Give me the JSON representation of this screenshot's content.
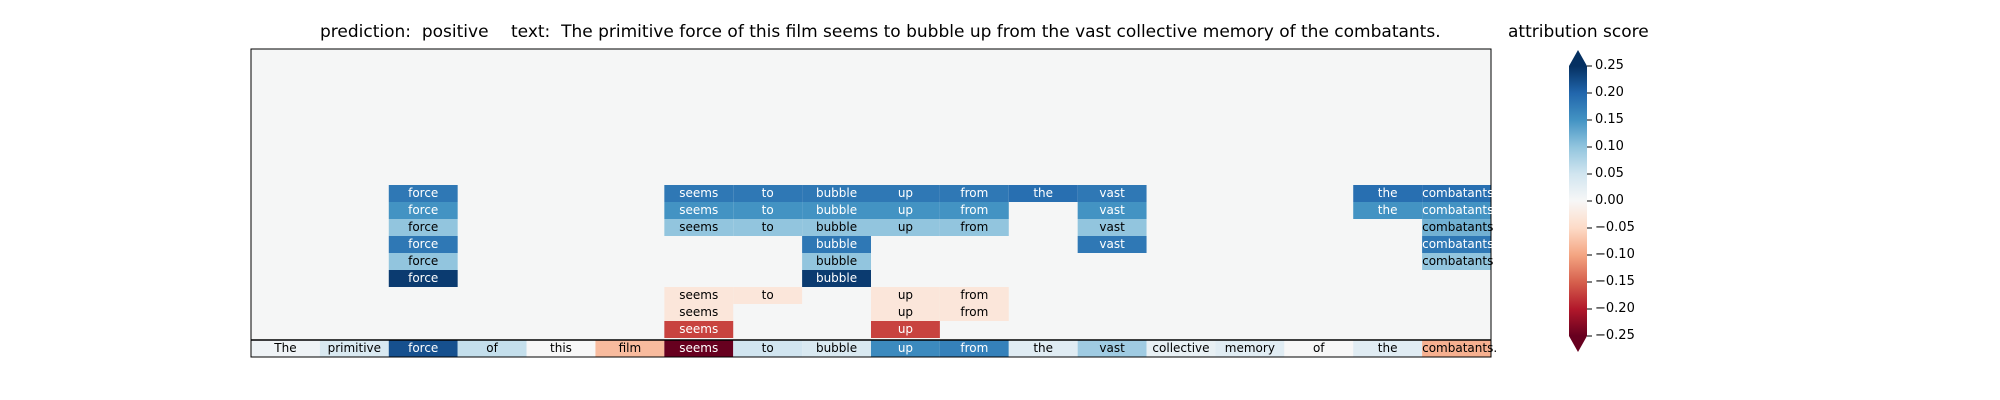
{
  "header": {
    "prediction_label": "prediction:",
    "prediction_value": "positive",
    "text_label": "text:",
    "text_value": "The primitive force of this film seems to bubble up from the vast collective memory of the combatants."
  },
  "colorbar": {
    "title": "attribution score",
    "vmin": -0.25,
    "vmax": 0.25,
    "ticks": [
      0.25,
      0.2,
      0.15,
      0.1,
      0.05,
      0.0,
      -0.05,
      -0.1,
      -0.15,
      -0.2,
      -0.25
    ],
    "tick_labels": [
      "0.25",
      "0.20",
      "0.15",
      "0.10",
      "0.05",
      "0.00",
      "−0.05",
      "−0.10",
      "−0.15",
      "−0.20",
      "−0.25"
    ],
    "colormap": "RdBu",
    "extend": "both"
  },
  "chart_data": {
    "type": "heatmap",
    "tokens": [
      "The",
      "primitive",
      "force",
      "of",
      "this",
      "film",
      "seems",
      "to",
      "bubble",
      "up",
      "from",
      "the",
      "vast",
      "collective",
      "memory",
      "of",
      "the",
      "combatants."
    ],
    "bottom_row_scores": [
      0.01,
      0.04,
      0.22,
      0.06,
      0.0,
      -0.08,
      -0.25,
      0.05,
      0.04,
      0.16,
      0.17,
      0.03,
      0.09,
      0.02,
      0.03,
      0.0,
      0.03,
      -0.09
    ],
    "rows": [
      {
        "cells": [
          {
            "col": 2,
            "word": "force",
            "score": 0.18
          },
          {
            "col": 6,
            "word": "seems",
            "score": 0.18
          },
          {
            "col": 7,
            "word": "to",
            "score": 0.18
          },
          {
            "col": 8,
            "word": "bubble",
            "score": 0.18
          },
          {
            "col": 9,
            "word": "up",
            "score": 0.18
          },
          {
            "col": 10,
            "word": "from",
            "score": 0.18
          },
          {
            "col": 11,
            "word": "the",
            "score": 0.19
          },
          {
            "col": 12,
            "word": "vast",
            "score": 0.18
          },
          {
            "col": 16,
            "word": "the",
            "score": 0.19
          },
          {
            "col": 17,
            "word": "combatants",
            "score": 0.19
          }
        ]
      },
      {
        "cells": [
          {
            "col": 2,
            "word": "force",
            "score": 0.15
          },
          {
            "col": 6,
            "word": "seems",
            "score": 0.15
          },
          {
            "col": 7,
            "word": "to",
            "score": 0.15
          },
          {
            "col": 8,
            "word": "bubble",
            "score": 0.15
          },
          {
            "col": 9,
            "word": "up",
            "score": 0.15
          },
          {
            "col": 10,
            "word": "from",
            "score": 0.15
          },
          {
            "col": 12,
            "word": "vast",
            "score": 0.15
          },
          {
            "col": 16,
            "word": "the",
            "score": 0.15
          },
          {
            "col": 17,
            "word": "combatants",
            "score": 0.15
          }
        ]
      },
      {
        "cells": [
          {
            "col": 2,
            "word": "force",
            "score": 0.1
          },
          {
            "col": 6,
            "word": "seems",
            "score": 0.1
          },
          {
            "col": 7,
            "word": "to",
            "score": 0.1
          },
          {
            "col": 8,
            "word": "bubble",
            "score": 0.1
          },
          {
            "col": 9,
            "word": "up",
            "score": 0.1
          },
          {
            "col": 10,
            "word": "from",
            "score": 0.1
          },
          {
            "col": 12,
            "word": "vast",
            "score": 0.1
          },
          {
            "col": 17,
            "word": "combatants",
            "score": 0.12
          }
        ]
      },
      {
        "cells": [
          {
            "col": 2,
            "word": "force",
            "score": 0.18
          },
          {
            "col": 8,
            "word": "bubble",
            "score": 0.18
          },
          {
            "col": 12,
            "word": "vast",
            "score": 0.18
          },
          {
            "col": 17,
            "word": "combatants",
            "score": 0.18
          }
        ]
      },
      {
        "cells": [
          {
            "col": 2,
            "word": "force",
            "score": 0.1
          },
          {
            "col": 8,
            "word": "bubble",
            "score": 0.1
          },
          {
            "col": 17,
            "word": "combatants",
            "score": 0.1
          }
        ]
      },
      {
        "cells": [
          {
            "col": 2,
            "word": "force",
            "score": 0.24
          },
          {
            "col": 8,
            "word": "bubble",
            "score": 0.24
          }
        ]
      },
      {
        "cells": [
          {
            "col": 6,
            "word": "seems",
            "score": -0.03
          },
          {
            "col": 7,
            "word": "to",
            "score": -0.03
          },
          {
            "col": 9,
            "word": "up",
            "score": -0.03
          },
          {
            "col": 10,
            "word": "from",
            "score": -0.03
          }
        ]
      },
      {
        "cells": [
          {
            "col": 6,
            "word": "seems",
            "score": -0.03
          },
          {
            "col": 9,
            "word": "up",
            "score": -0.03
          },
          {
            "col": 10,
            "word": "from",
            "score": -0.03
          }
        ]
      },
      {
        "cells": [
          {
            "col": 6,
            "word": "seems",
            "score": -0.17
          },
          {
            "col": 9,
            "word": "up",
            "score": -0.17
          }
        ]
      }
    ]
  }
}
